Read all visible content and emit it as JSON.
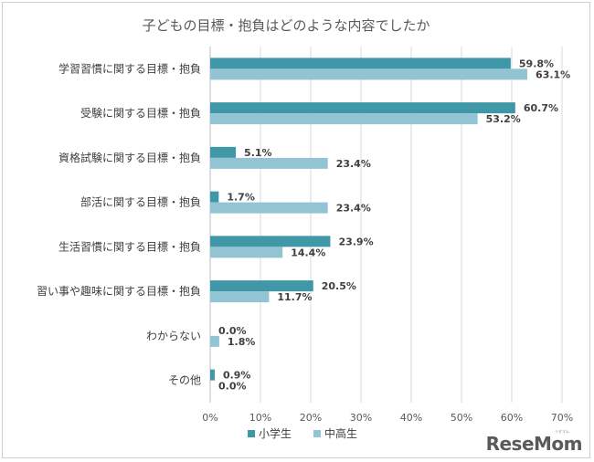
{
  "chart_data": {
    "type": "bar",
    "orientation": "horizontal",
    "title": "子どもの目標・抱負はどのような内容でしたか",
    "categories": [
      "学習習慣に関する目標・抱負",
      "受験に関する目標・抱負",
      "資格試験に関する目標・抱負",
      "部活に関する目標・抱負",
      "生活習慣に関する目標・抱負",
      "習い事や趣味に関する目標・抱負",
      "わからない",
      "その他"
    ],
    "series": [
      {
        "name": "小学生",
        "color": "#3f97a8",
        "values": [
          59.8,
          60.7,
          5.1,
          1.7,
          23.9,
          20.5,
          0.0,
          0.9
        ],
        "labels": [
          "59.8%",
          "60.7%",
          "5.1%",
          "1.7%",
          "23.9%",
          "20.5%",
          "0.0%",
          "0.9%"
        ]
      },
      {
        "name": "中高生",
        "color": "#92c4d4",
        "values": [
          63.1,
          53.2,
          23.4,
          23.4,
          14.4,
          11.7,
          1.8,
          0.0
        ],
        "labels": [
          "63.1%",
          "53.2%",
          "23.4%",
          "23.4%",
          "14.4%",
          "11.7%",
          "1.8%",
          "0.0%"
        ]
      }
    ],
    "xlim": [
      0,
      70
    ],
    "xticks": [
      "0%",
      "10%",
      "20%",
      "30%",
      "40%",
      "50%",
      "60%",
      "70%"
    ],
    "grid": true,
    "legend": "bottom-center"
  },
  "logo": {
    "text": "ReseMom",
    "sub": "リセマム"
  }
}
